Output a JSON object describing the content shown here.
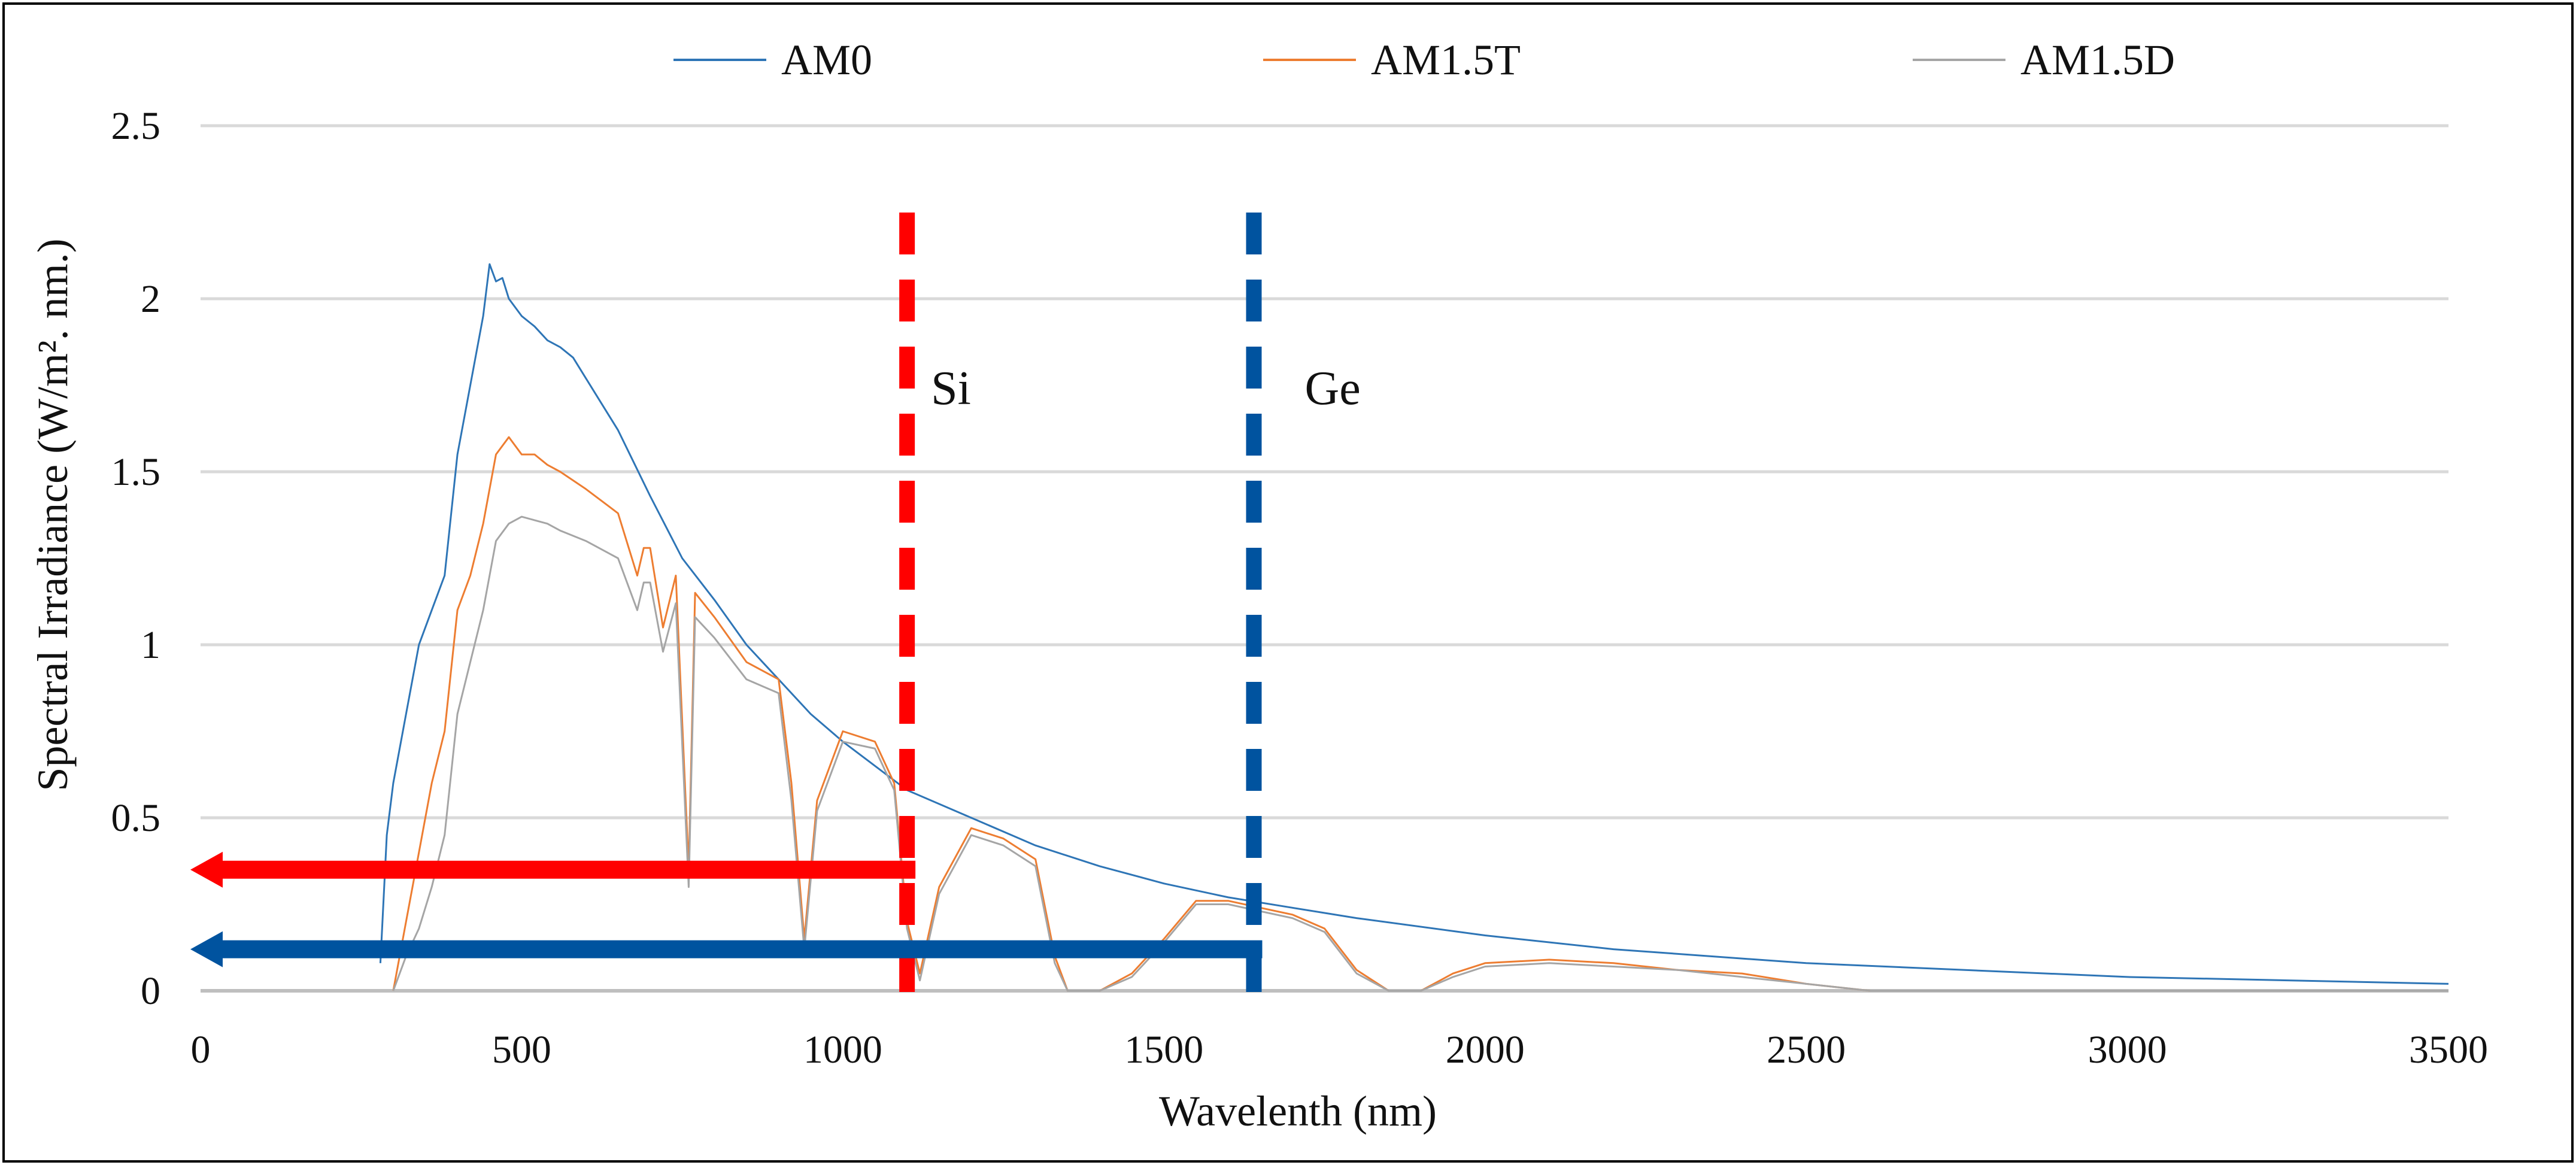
{
  "chart_data": {
    "type": "line",
    "title": "",
    "xlabel": "Wavelenth (nm)",
    "ylabel": "Spectral Irradiance (W/m². nm.)",
    "xlim": [
      0,
      3500
    ],
    "ylim": [
      0,
      2.5
    ],
    "xticks": [
      "0",
      "500",
      "1000",
      "1500",
      "2000",
      "2500",
      "3000",
      "3500"
    ],
    "yticks": [
      "0",
      "0.5",
      "1",
      "1.5",
      "2",
      "2.5"
    ],
    "grid": true,
    "legend_position": "top",
    "series": [
      {
        "name": "AM0",
        "color": "#2E75B6",
        "x": [
          280,
          290,
          300,
          320,
          340,
          360,
          380,
          400,
          420,
          440,
          450,
          460,
          470,
          480,
          500,
          520,
          540,
          560,
          580,
          600,
          650,
          700,
          750,
          800,
          850,
          900,
          950,
          1000,
          1050,
          1100,
          1200,
          1300,
          1400,
          1500,
          1600,
          1700,
          1800,
          2000,
          2200,
          2500,
          3000,
          3500
        ],
        "y": [
          0.08,
          0.45,
          0.6,
          0.8,
          1.0,
          1.1,
          1.2,
          1.55,
          1.75,
          1.95,
          2.1,
          2.05,
          2.06,
          2.0,
          1.95,
          1.92,
          1.88,
          1.86,
          1.83,
          1.77,
          1.62,
          1.43,
          1.25,
          1.13,
          1.0,
          0.9,
          0.8,
          0.72,
          0.65,
          0.58,
          0.5,
          0.42,
          0.36,
          0.31,
          0.27,
          0.24,
          0.21,
          0.16,
          0.12,
          0.08,
          0.04,
          0.02
        ]
      },
      {
        "name": "AM1.5T",
        "color": "#ED7D31",
        "x": [
          300,
          320,
          340,
          360,
          380,
          400,
          420,
          440,
          460,
          480,
          500,
          520,
          540,
          560,
          600,
          650,
          680,
          690,
          700,
          720,
          740,
          760,
          770,
          800,
          850,
          900,
          920,
          940,
          960,
          1000,
          1050,
          1080,
          1100,
          1120,
          1150,
          1200,
          1250,
          1300,
          1330,
          1350,
          1400,
          1450,
          1500,
          1550,
          1600,
          1650,
          1700,
          1750,
          1800,
          1850,
          1900,
          1950,
          2000,
          2100,
          2200,
          2300,
          2400,
          2500,
          2600,
          3000,
          3500
        ],
        "y": [
          0.0,
          0.2,
          0.4,
          0.6,
          0.75,
          1.1,
          1.2,
          1.35,
          1.55,
          1.6,
          1.55,
          1.55,
          1.52,
          1.5,
          1.45,
          1.38,
          1.2,
          1.28,
          1.28,
          1.05,
          1.2,
          0.35,
          1.15,
          1.08,
          0.95,
          0.9,
          0.6,
          0.15,
          0.55,
          0.75,
          0.72,
          0.6,
          0.2,
          0.05,
          0.3,
          0.47,
          0.44,
          0.38,
          0.1,
          0.0,
          0.0,
          0.05,
          0.15,
          0.26,
          0.26,
          0.24,
          0.22,
          0.18,
          0.06,
          0.0,
          0.0,
          0.05,
          0.08,
          0.09,
          0.08,
          0.06,
          0.05,
          0.02,
          0.0,
          0.0,
          0.0
        ]
      },
      {
        "name": "AM1.5D",
        "color": "#A5A5A5",
        "x": [
          300,
          320,
          340,
          360,
          380,
          400,
          420,
          440,
          460,
          480,
          500,
          520,
          540,
          560,
          600,
          650,
          680,
          690,
          700,
          720,
          740,
          760,
          770,
          800,
          850,
          900,
          920,
          940,
          960,
          1000,
          1050,
          1080,
          1100,
          1120,
          1150,
          1200,
          1250,
          1300,
          1330,
          1350,
          1400,
          1450,
          1500,
          1550,
          1600,
          1650,
          1700,
          1750,
          1800,
          1850,
          1900,
          1950,
          2000,
          2100,
          2200,
          2300,
          2400,
          2500,
          2600,
          3000,
          3500
        ],
        "y": [
          0.0,
          0.1,
          0.18,
          0.3,
          0.45,
          0.8,
          0.95,
          1.1,
          1.3,
          1.35,
          1.37,
          1.36,
          1.35,
          1.33,
          1.3,
          1.25,
          1.1,
          1.18,
          1.18,
          0.98,
          1.12,
          0.3,
          1.08,
          1.02,
          0.9,
          0.86,
          0.55,
          0.12,
          0.52,
          0.72,
          0.7,
          0.58,
          0.18,
          0.03,
          0.28,
          0.45,
          0.42,
          0.36,
          0.08,
          0.0,
          0.0,
          0.04,
          0.14,
          0.25,
          0.25,
          0.23,
          0.21,
          0.17,
          0.05,
          0.0,
          0.0,
          0.04,
          0.07,
          0.08,
          0.07,
          0.06,
          0.04,
          0.02,
          0.0,
          0.0,
          0.0
        ]
      }
    ],
    "annotations": [
      {
        "label": "Si",
        "x": 1100,
        "color": "#FF0000",
        "arrow_y": 0.35
      },
      {
        "label": "Ge",
        "x": 1640,
        "color": "#00539F",
        "arrow_y": 0.12
      }
    ]
  }
}
